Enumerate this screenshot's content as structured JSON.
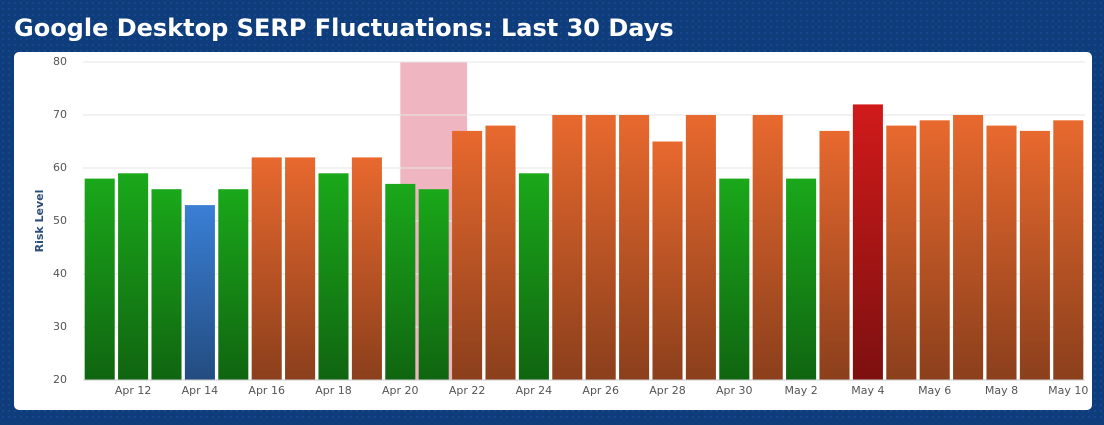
{
  "chart_data": {
    "type": "bar",
    "title": "Google Desktop SERP Fluctuations: Last 30 Days",
    "y_label": "Risk Level",
    "categories": [
      null,
      "Apr 12",
      null,
      "Apr 14",
      null,
      "Apr 16",
      null,
      "Apr 18",
      null,
      "Apr 20",
      null,
      "Apr 22",
      null,
      "Apr 24",
      null,
      "Apr 26",
      null,
      "Apr 28",
      null,
      "Apr 30",
      null,
      "May 2",
      null,
      "May 4",
      null,
      "May 6",
      null,
      "May 8",
      null,
      "May 10"
    ],
    "values": [
      58,
      59,
      56,
      53,
      56,
      62,
      62,
      59,
      62,
      57,
      56,
      67,
      68,
      59,
      70,
      70,
      70,
      65,
      70,
      58,
      70,
      58,
      67,
      72,
      68,
      69,
      70,
      68,
      67,
      69
    ],
    "colors": [
      "#1aa81a",
      "#1aa81a",
      "#1aa81a",
      "#3a7fd5",
      "#1aa81a",
      "#e8692e",
      "#e8692e",
      "#1aa81a",
      "#e8692e",
      "#1aa81a",
      "#1aa81a",
      "#e8692e",
      "#e8692e",
      "#1aa81a",
      "#e8692e",
      "#e8692e",
      "#e8692e",
      "#e8692e",
      "#e8692e",
      "#1aa81a",
      "#e8692e",
      "#1aa81a",
      "#e8692e",
      "#d11a1a",
      "#e8692e",
      "#e8692e",
      "#e8692e",
      "#e8692e",
      "#e8692e",
      "#e8692e"
    ],
    "ylim": [
      20,
      80
    ],
    "yticks": [
      20,
      30,
      40,
      50,
      60,
      70,
      80
    ],
    "grid": true
  }
}
